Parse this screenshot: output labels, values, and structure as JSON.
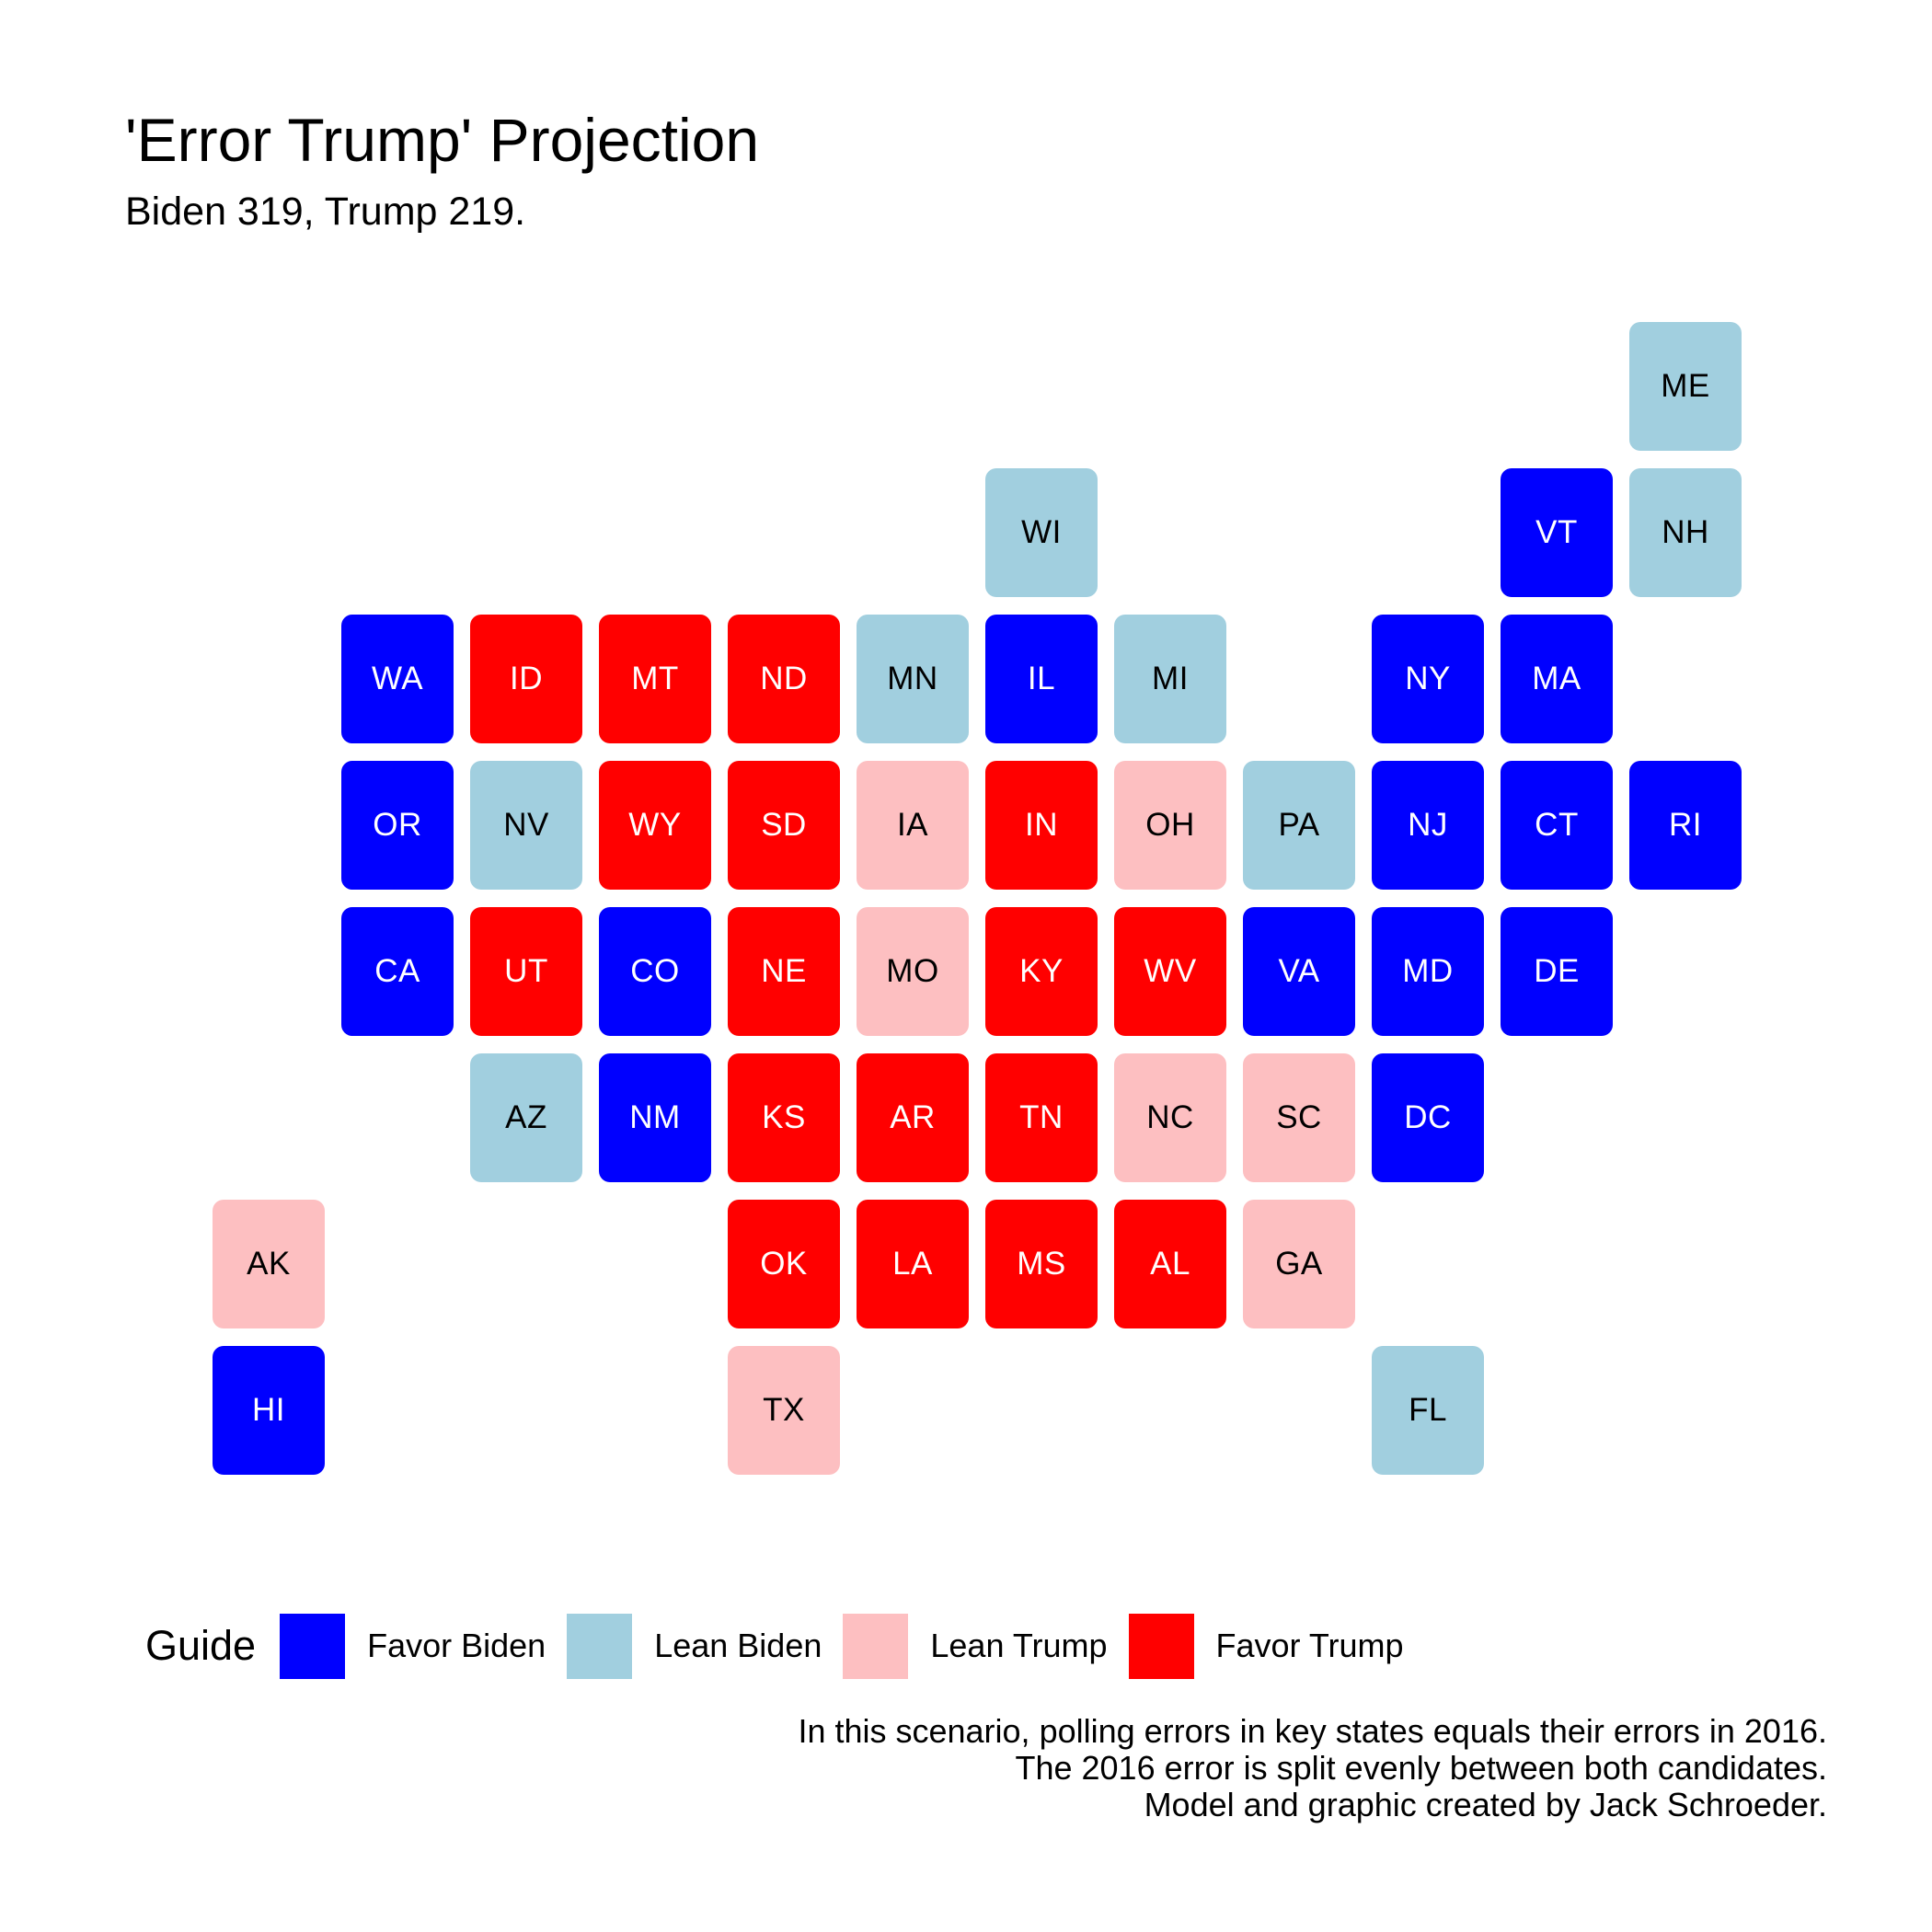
{
  "title": "'Error Trump' Projection",
  "subtitle": "Biden 319, Trump 219.",
  "categories": {
    "favor_biden": {
      "label": "Favor Biden",
      "color": "#0000ff",
      "text_color": "#ffffff"
    },
    "lean_biden": {
      "label": "Lean Biden",
      "color": "#a1cfdf",
      "text_color": "#000000"
    },
    "lean_trump": {
      "label": "Lean Trump",
      "color": "#fdbfc1",
      "text_color": "#000000"
    },
    "favor_trump": {
      "label": "Favor Trump",
      "color": "#ff0000",
      "text_color": "#ffffff"
    }
  },
  "legend": {
    "title": "Guide",
    "items": [
      "favor_biden",
      "lean_biden",
      "lean_trump",
      "favor_trump"
    ]
  },
  "states": [
    {
      "abbr": "ME",
      "row": 1,
      "col": 12,
      "cat": "lean_biden"
    },
    {
      "abbr": "WI",
      "row": 2,
      "col": 7,
      "cat": "lean_biden"
    },
    {
      "abbr": "VT",
      "row": 2,
      "col": 11,
      "cat": "favor_biden"
    },
    {
      "abbr": "NH",
      "row": 2,
      "col": 12,
      "cat": "lean_biden"
    },
    {
      "abbr": "WA",
      "row": 3,
      "col": 2,
      "cat": "favor_biden"
    },
    {
      "abbr": "ID",
      "row": 3,
      "col": 3,
      "cat": "favor_trump"
    },
    {
      "abbr": "MT",
      "row": 3,
      "col": 4,
      "cat": "favor_trump"
    },
    {
      "abbr": "ND",
      "row": 3,
      "col": 5,
      "cat": "favor_trump"
    },
    {
      "abbr": "MN",
      "row": 3,
      "col": 6,
      "cat": "lean_biden"
    },
    {
      "abbr": "IL",
      "row": 3,
      "col": 7,
      "cat": "favor_biden"
    },
    {
      "abbr": "MI",
      "row": 3,
      "col": 8,
      "cat": "lean_biden"
    },
    {
      "abbr": "NY",
      "row": 3,
      "col": 10,
      "cat": "favor_biden"
    },
    {
      "abbr": "MA",
      "row": 3,
      "col": 11,
      "cat": "favor_biden"
    },
    {
      "abbr": "OR",
      "row": 4,
      "col": 2,
      "cat": "favor_biden"
    },
    {
      "abbr": "NV",
      "row": 4,
      "col": 3,
      "cat": "lean_biden"
    },
    {
      "abbr": "WY",
      "row": 4,
      "col": 4,
      "cat": "favor_trump"
    },
    {
      "abbr": "SD",
      "row": 4,
      "col": 5,
      "cat": "favor_trump"
    },
    {
      "abbr": "IA",
      "row": 4,
      "col": 6,
      "cat": "lean_trump"
    },
    {
      "abbr": "IN",
      "row": 4,
      "col": 7,
      "cat": "favor_trump"
    },
    {
      "abbr": "OH",
      "row": 4,
      "col": 8,
      "cat": "lean_trump"
    },
    {
      "abbr": "PA",
      "row": 4,
      "col": 9,
      "cat": "lean_biden"
    },
    {
      "abbr": "NJ",
      "row": 4,
      "col": 10,
      "cat": "favor_biden"
    },
    {
      "abbr": "CT",
      "row": 4,
      "col": 11,
      "cat": "favor_biden"
    },
    {
      "abbr": "RI",
      "row": 4,
      "col": 12,
      "cat": "favor_biden"
    },
    {
      "abbr": "CA",
      "row": 5,
      "col": 2,
      "cat": "favor_biden"
    },
    {
      "abbr": "UT",
      "row": 5,
      "col": 3,
      "cat": "favor_trump"
    },
    {
      "abbr": "CO",
      "row": 5,
      "col": 4,
      "cat": "favor_biden"
    },
    {
      "abbr": "NE",
      "row": 5,
      "col": 5,
      "cat": "favor_trump"
    },
    {
      "abbr": "MO",
      "row": 5,
      "col": 6,
      "cat": "lean_trump"
    },
    {
      "abbr": "KY",
      "row": 5,
      "col": 7,
      "cat": "favor_trump"
    },
    {
      "abbr": "WV",
      "row": 5,
      "col": 8,
      "cat": "favor_trump"
    },
    {
      "abbr": "VA",
      "row": 5,
      "col": 9,
      "cat": "favor_biden"
    },
    {
      "abbr": "MD",
      "row": 5,
      "col": 10,
      "cat": "favor_biden"
    },
    {
      "abbr": "DE",
      "row": 5,
      "col": 11,
      "cat": "favor_biden"
    },
    {
      "abbr": "AZ",
      "row": 6,
      "col": 3,
      "cat": "lean_biden"
    },
    {
      "abbr": "NM",
      "row": 6,
      "col": 4,
      "cat": "favor_biden"
    },
    {
      "abbr": "KS",
      "row": 6,
      "col": 5,
      "cat": "favor_trump"
    },
    {
      "abbr": "AR",
      "row": 6,
      "col": 6,
      "cat": "favor_trump"
    },
    {
      "abbr": "TN",
      "row": 6,
      "col": 7,
      "cat": "favor_trump"
    },
    {
      "abbr": "NC",
      "row": 6,
      "col": 8,
      "cat": "lean_trump"
    },
    {
      "abbr": "SC",
      "row": 6,
      "col": 9,
      "cat": "lean_trump"
    },
    {
      "abbr": "DC",
      "row": 6,
      "col": 10,
      "cat": "favor_biden"
    },
    {
      "abbr": "AK",
      "row": 7,
      "col": 1,
      "cat": "lean_trump"
    },
    {
      "abbr": "OK",
      "row": 7,
      "col": 5,
      "cat": "favor_trump"
    },
    {
      "abbr": "LA",
      "row": 7,
      "col": 6,
      "cat": "favor_trump"
    },
    {
      "abbr": "MS",
      "row": 7,
      "col": 7,
      "cat": "favor_trump"
    },
    {
      "abbr": "AL",
      "row": 7,
      "col": 8,
      "cat": "favor_trump"
    },
    {
      "abbr": "GA",
      "row": 7,
      "col": 9,
      "cat": "lean_trump"
    },
    {
      "abbr": "HI",
      "row": 8,
      "col": 1,
      "cat": "favor_biden"
    },
    {
      "abbr": "TX",
      "row": 8,
      "col": 5,
      "cat": "lean_trump"
    },
    {
      "abbr": "FL",
      "row": 8,
      "col": 10,
      "cat": "lean_biden"
    }
  ],
  "caption": [
    "In this scenario, polling errors in key states equals their errors in 2016.",
    "The 2016 error is split evenly between both candidates.",
    "Model and graphic created by Jack Schroeder."
  ]
}
